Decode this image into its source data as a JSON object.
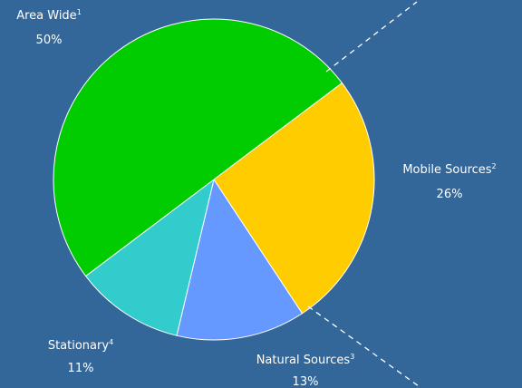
{
  "chart_data": {
    "type": "pie",
    "start_angle_deg": -37,
    "direction": "clockwise",
    "background": "#336699",
    "slices": [
      {
        "label": "Mobile Sources",
        "footnote": "2",
        "value": 26,
        "value_label": "26%",
        "color": "#FFCC00"
      },
      {
        "label": "Natural Sources",
        "footnote": "3",
        "value": 13,
        "value_label": "13%",
        "color": "#6699FF"
      },
      {
        "label": "Stationary",
        "footnote": "4",
        "value": 11,
        "value_label": "11%",
        "color": "#33CCCC"
      },
      {
        "label": "Area Wide",
        "footnote": "1",
        "value": 50,
        "value_label": "50%",
        "color": "#00CC00"
      }
    ]
  }
}
